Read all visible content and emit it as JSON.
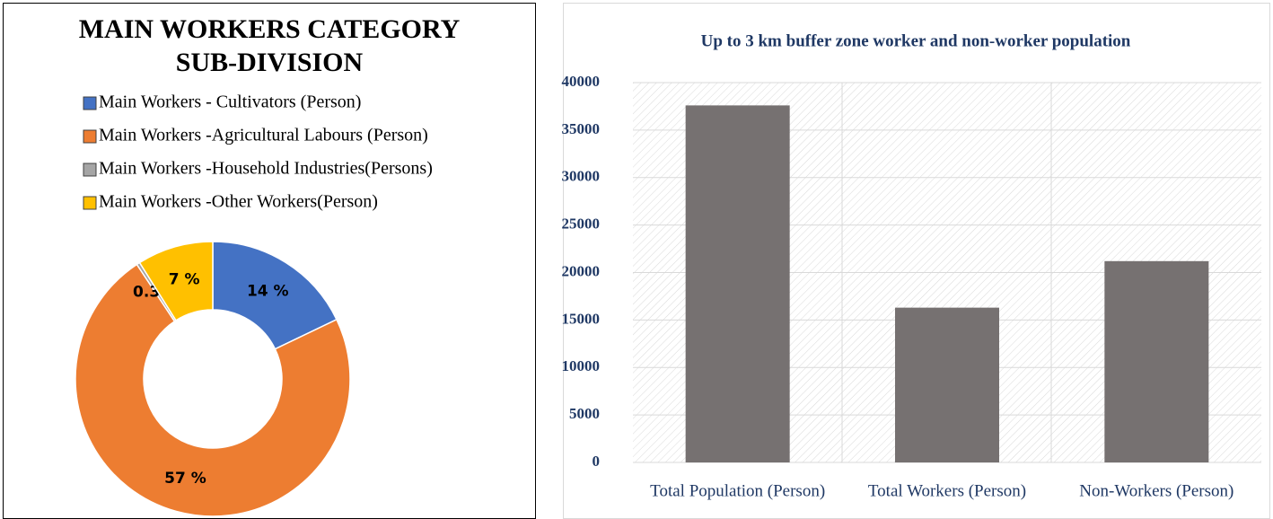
{
  "chart_data": [
    {
      "type": "pie",
      "title": [
        "MAIN WORKERS CATEGORY",
        "SUB-DIVISION"
      ],
      "categories": [
        "Main Workers - Cultivators (Person)",
        "Main Workers -Agricultural Labours (Person)",
        "Main Workers -Household Industries(Persons)",
        "Main Workers -Other Workers(Person)"
      ],
      "values": [
        14,
        57,
        0.3,
        7
      ],
      "value_labels": [
        "14 %",
        "57 %",
        "0.3 %",
        "7 %"
      ],
      "colors": [
        "#4472c4",
        "#ed7d31",
        "#a5a5a5",
        "#ffc000"
      ],
      "donut": true,
      "legend": "top"
    },
    {
      "type": "bar",
      "title": "Up to 3 km buffer zone worker and non-worker population",
      "categories": [
        "Total Population (Person)",
        "Total Workers (Person)",
        "Non-Workers (Person)"
      ],
      "values": [
        37600,
        16300,
        21200
      ],
      "color": "#767171",
      "ylim": [
        0,
        40000
      ],
      "yticks": [
        0,
        5000,
        10000,
        15000,
        20000,
        25000,
        30000,
        35000,
        40000
      ],
      "grid": true
    }
  ]
}
